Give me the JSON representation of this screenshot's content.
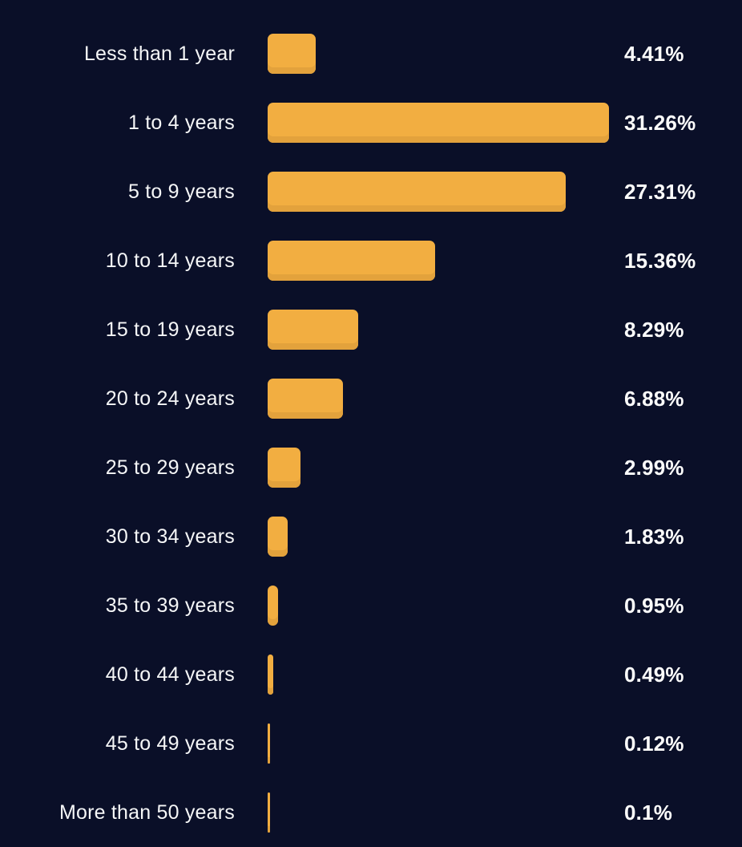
{
  "chart_data": {
    "type": "bar",
    "orientation": "horizontal",
    "title": "",
    "xlabel": "",
    "ylabel": "",
    "categories": [
      "Less than 1 year",
      "1 to 4 years",
      "5 to 9 years",
      "10 to 14 years",
      "15 to 19 years",
      "20 to 24 years",
      "25 to 29 years",
      "30 to 34 years",
      "35 to 39 years",
      "40 to 44 years",
      "45 to 49 years",
      "More than 50 years"
    ],
    "values": [
      4.41,
      31.26,
      27.31,
      15.36,
      8.29,
      6.88,
      2.99,
      1.83,
      0.95,
      0.49,
      0.12,
      0.1
    ],
    "value_labels": [
      "4.41%",
      "31.26%",
      "27.31%",
      "15.36%",
      "8.29%",
      "6.88%",
      "2.99%",
      "1.83%",
      "0.95%",
      "0.49%",
      "0.12%",
      "0.1%"
    ],
    "axis_max": 31.26,
    "grid": false,
    "legend": false,
    "colors": {
      "background": "#0A0F28",
      "bar": "#F2AE41",
      "bar_shade": "#E3A23C",
      "label_text": "#F5F6F7",
      "value_text": "#FCFCFB"
    }
  }
}
